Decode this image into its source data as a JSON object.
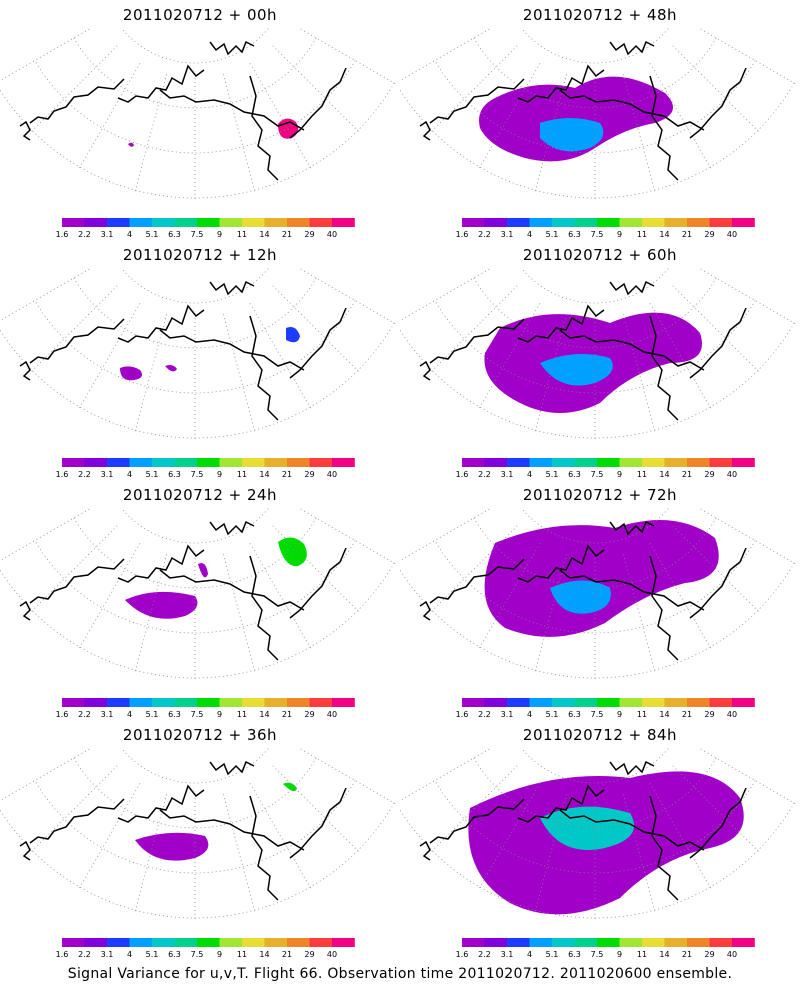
{
  "panels": [
    {
      "title": "2011020712 + 00h",
      "lead": "00h"
    },
    {
      "title": "2011020712 + 48h",
      "lead": "48h"
    },
    {
      "title": "2011020712 + 12h",
      "lead": "12h"
    },
    {
      "title": "2011020712 + 60h",
      "lead": "60h"
    },
    {
      "title": "2011020712 + 24h",
      "lead": "24h"
    },
    {
      "title": "2011020712 + 72h",
      "lead": "72h"
    },
    {
      "title": "2011020712 + 36h",
      "lead": "36h"
    },
    {
      "title": "2011020712 + 84h",
      "lead": "84h"
    }
  ],
  "colorbar": {
    "labels": [
      "1.6",
      "2.2",
      "3.1",
      "4",
      "5.1",
      "6.3",
      "7.5",
      "9",
      "11",
      "14",
      "21",
      "29",
      "40"
    ],
    "colors": [
      "#a000c8",
      "#8200dc",
      "#1e3cff",
      "#00a0ff",
      "#00c8c8",
      "#00d28c",
      "#00dc00",
      "#a0e632",
      "#e6dc32",
      "#e6af2d",
      "#f08228",
      "#fa3c3c",
      "#f00082"
    ]
  },
  "footer": "Signal Variance for u,v,T. Flight 66. Observation time 2011020712. 2011020600 ensemble."
}
